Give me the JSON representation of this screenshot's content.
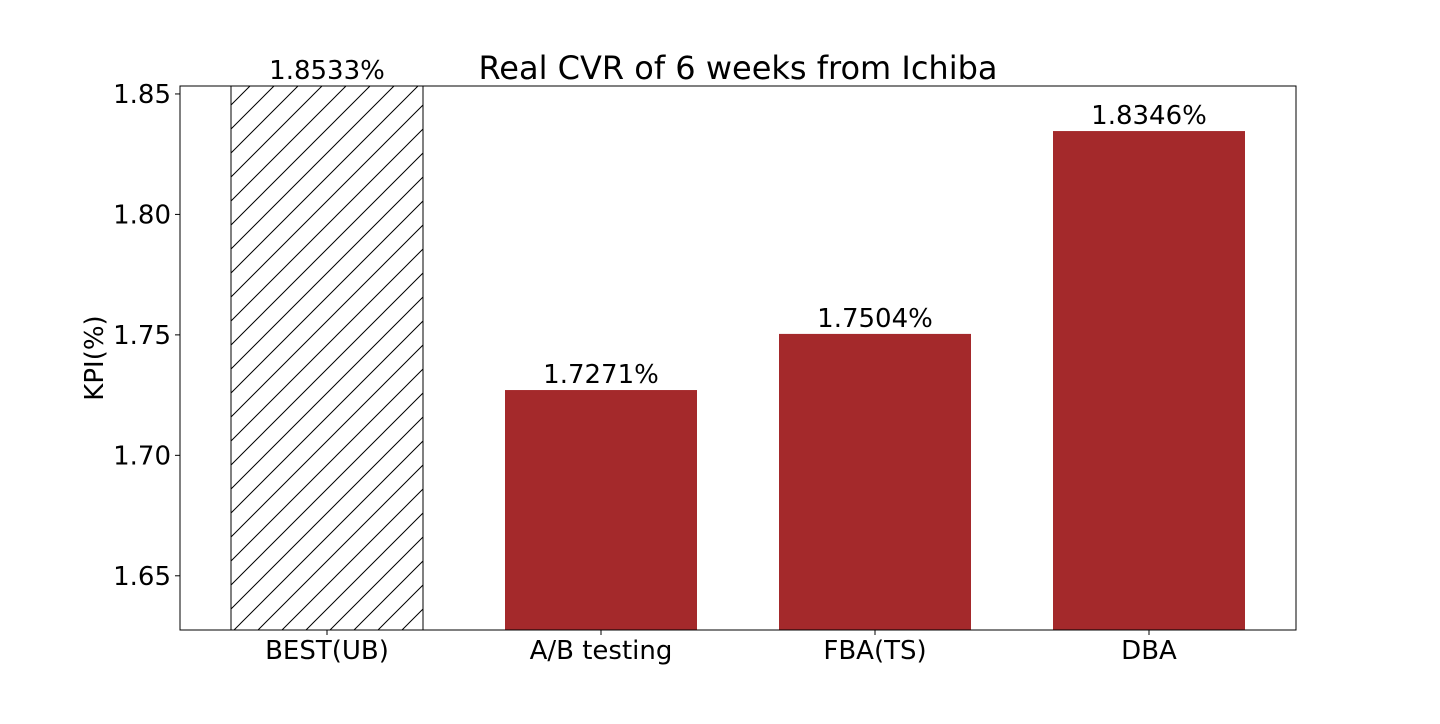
{
  "chart_data": {
    "type": "bar",
    "title": "Real CVR of 6 weeks from Ichiba",
    "xlabel": "",
    "ylabel": "KPI(%)",
    "ylim": [
      1.6275,
      1.8533
    ],
    "yticks": [
      1.65,
      1.7,
      1.75,
      1.8,
      1.85
    ],
    "ytick_labels": [
      "1.65",
      "1.70",
      "1.75",
      "1.80",
      "1.85"
    ],
    "categories": [
      "BEST(UB)",
      "A/B testing",
      "FBA(TS)",
      "DBA"
    ],
    "values": [
      1.8533,
      1.7271,
      1.7504,
      1.8346
    ],
    "data_labels": [
      "1.8533%",
      "1.7271%",
      "1.7504%",
      "1.8346%"
    ],
    "bar_styles": [
      "hatched",
      "solid",
      "solid",
      "solid"
    ],
    "grid": false,
    "colors": {
      "bar_fill": "#a4292b",
      "hatch_stroke": "#000000",
      "axis": "#000000"
    }
  }
}
